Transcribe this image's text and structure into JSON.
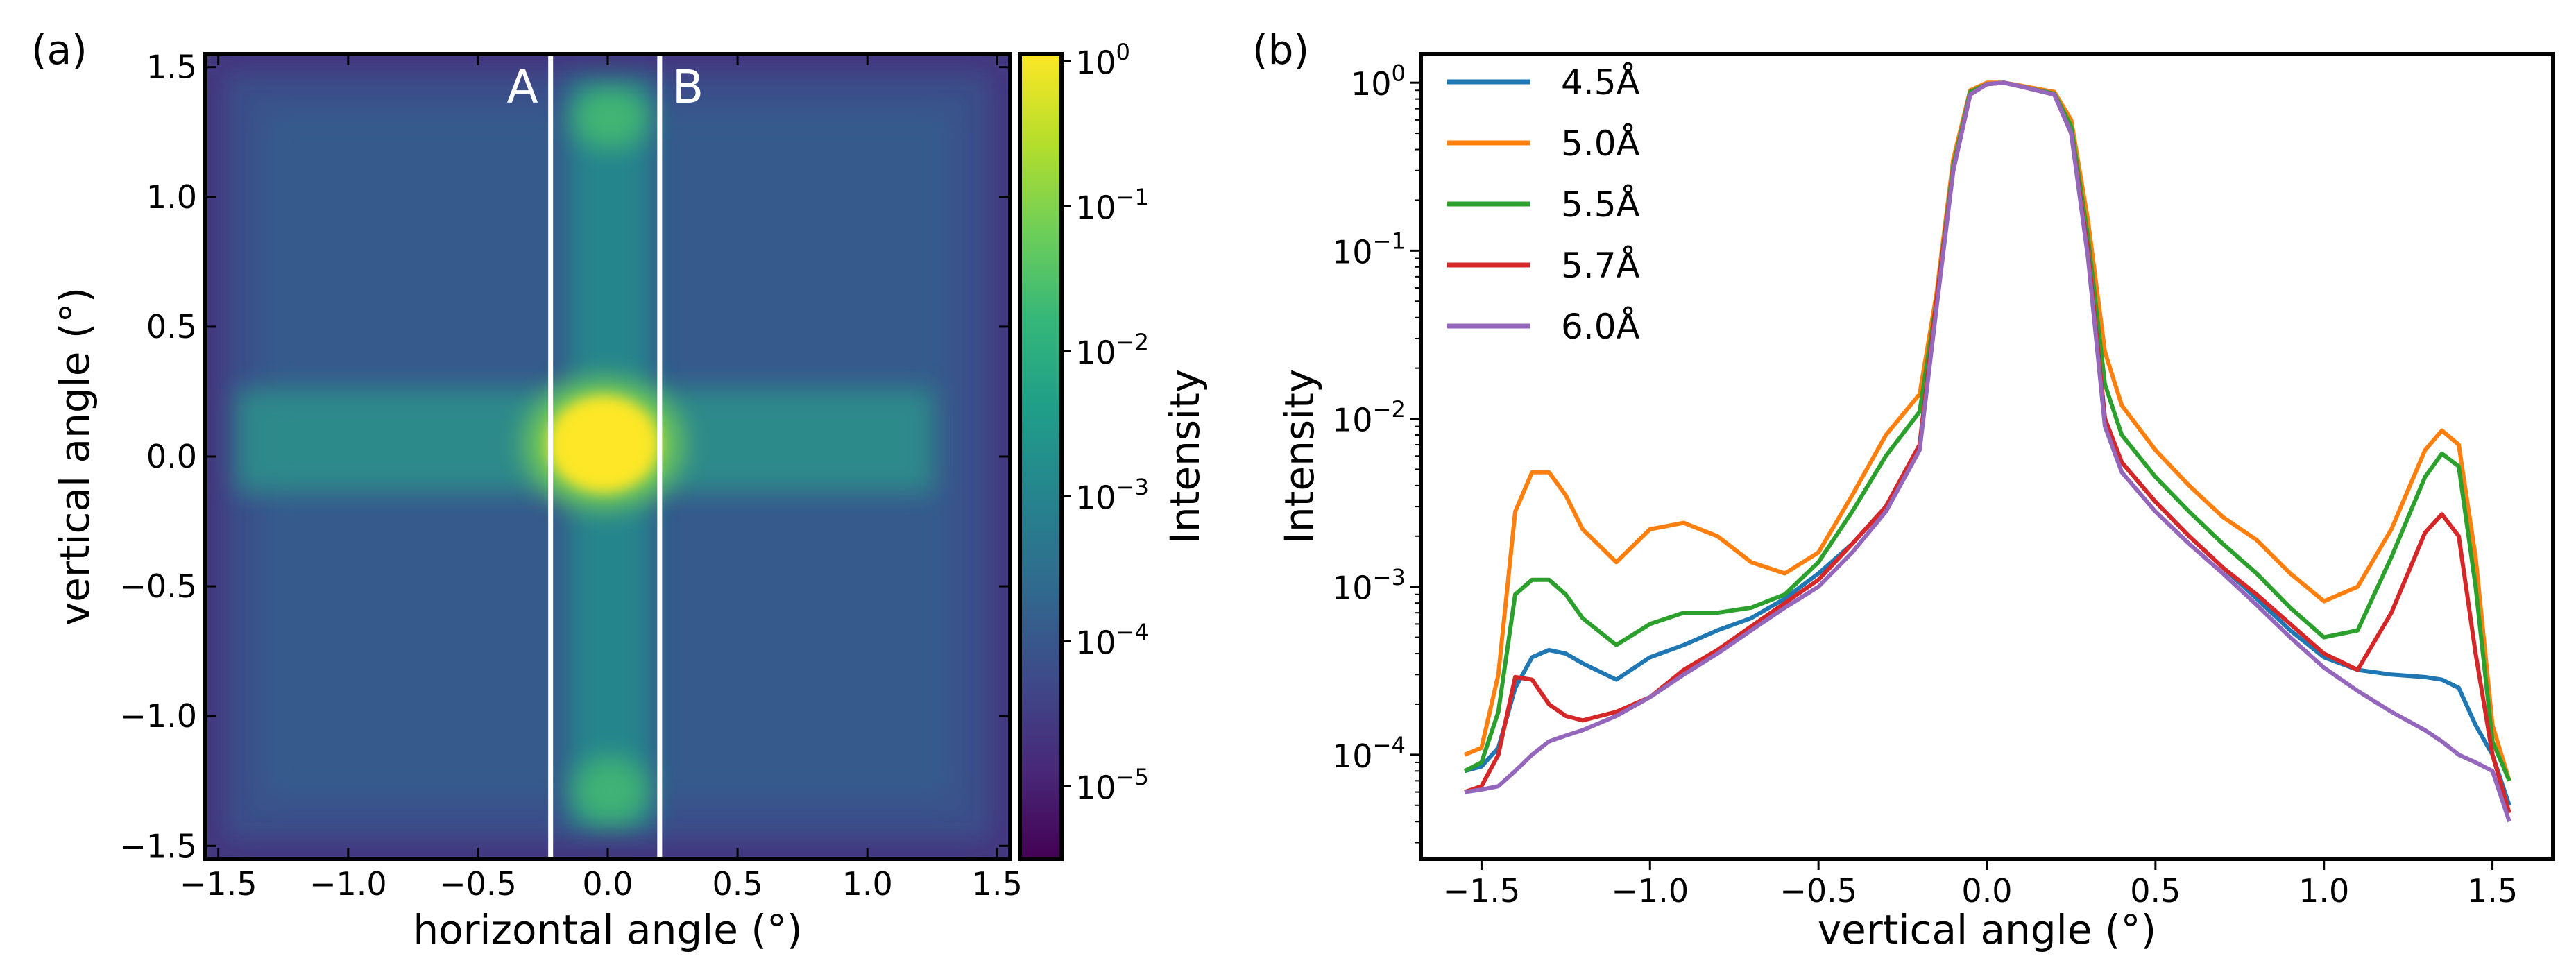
{
  "chart_data": [
    {
      "panel_label": "(a)",
      "type": "heatmap",
      "xlabel": "horizontal angle (°)",
      "ylabel": "vertical angle (°)",
      "xlim": [
        -1.55,
        1.55
      ],
      "ylim": [
        -1.55,
        1.55
      ],
      "x_ticks": [
        -1.5,
        -1.0,
        -0.5,
        0.0,
        0.5,
        1.0,
        1.5
      ],
      "x_tick_labels": [
        "−1.5",
        "−1.0",
        "−0.5",
        "0.0",
        "0.5",
        "1.0",
        "1.5"
      ],
      "y_ticks": [
        -1.5,
        -1.0,
        -0.5,
        0.0,
        0.5,
        1.0,
        1.5
      ],
      "y_tick_labels": [
        "−1.5",
        "−1.0",
        "−0.5",
        "0.0",
        "0.5",
        "1.0",
        "1.5"
      ],
      "colorbar": {
        "label": "Intensity",
        "scale": "log",
        "range_exponent": [
          -5.5,
          0.05
        ],
        "ticks": [
          {
            "exp": 0,
            "text": "10",
            "sup": "0"
          },
          {
            "exp": -1,
            "text": "10",
            "sup": "−1"
          },
          {
            "exp": -2,
            "text": "10",
            "sup": "−2"
          },
          {
            "exp": -3,
            "text": "10",
            "sup": "−3"
          },
          {
            "exp": -4,
            "text": "10",
            "sup": "−4"
          },
          {
            "exp": -5,
            "text": "10",
            "sup": "−5"
          }
        ]
      },
      "cut_lines": [
        {
          "label": "A",
          "x": -0.22
        },
        {
          "label": "B",
          "x": 0.2
        }
      ]
    },
    {
      "panel_label": "(b)",
      "type": "line",
      "xlabel": "vertical angle (°)",
      "ylabel": "Intensity",
      "yscale": "log",
      "xlim": [
        -1.68,
        1.68
      ],
      "ylim_exponent": [
        -4.62,
        0.17
      ],
      "x_ticks": [
        -1.5,
        -1.0,
        -0.5,
        0.0,
        0.5,
        1.0,
        1.5
      ],
      "x_tick_labels": [
        "−1.5",
        "−1.0",
        "−0.5",
        "0.0",
        "0.5",
        "1.0",
        "1.5"
      ],
      "y_ticks": [
        {
          "exp": 0,
          "text": "10",
          "sup": "0"
        },
        {
          "exp": -1,
          "text": "10",
          "sup": "−1"
        },
        {
          "exp": -2,
          "text": "10",
          "sup": "−2"
        },
        {
          "exp": -3,
          "text": "10",
          "sup": "−3"
        },
        {
          "exp": -4,
          "text": "10",
          "sup": "−4"
        }
      ],
      "legend_position": "upper-left",
      "series": [
        {
          "name": "4.5Å",
          "color": "#1f77b4",
          "x": [
            -1.55,
            -1.5,
            -1.45,
            -1.4,
            -1.35,
            -1.3,
            -1.25,
            -1.2,
            -1.1,
            -1.0,
            -0.9,
            -0.8,
            -0.7,
            -0.6,
            -0.5,
            -0.4,
            -0.3,
            -0.2,
            -0.15,
            -0.1,
            -0.05,
            0.0,
            0.05,
            0.1,
            0.2,
            0.25,
            0.3,
            0.35,
            0.4,
            0.5,
            0.6,
            0.7,
            0.8,
            0.9,
            1.0,
            1.1,
            1.2,
            1.3,
            1.35,
            1.4,
            1.45,
            1.5,
            1.55
          ],
          "y": [
            8e-05,
            8.5e-05,
            0.00011,
            0.00025,
            0.00038,
            0.00042,
            0.0004,
            0.00035,
            0.00028,
            0.00038,
            0.00045,
            0.00055,
            0.00065,
            0.00085,
            0.0012,
            0.0018,
            0.003,
            0.007,
            0.05,
            0.3,
            0.85,
            0.98,
            1.0,
            0.95,
            0.85,
            0.5,
            0.1,
            0.01,
            0.0055,
            0.0032,
            0.002,
            0.0013,
            0.00085,
            0.00055,
            0.00038,
            0.00032,
            0.0003,
            0.00029,
            0.00028,
            0.00025,
            0.00015,
            0.0001,
            5e-05
          ]
        },
        {
          "name": "5.0Å",
          "color": "#ff7f0e",
          "x": [
            -1.55,
            -1.5,
            -1.45,
            -1.4,
            -1.35,
            -1.3,
            -1.25,
            -1.2,
            -1.1,
            -1.0,
            -0.9,
            -0.8,
            -0.7,
            -0.6,
            -0.5,
            -0.4,
            -0.3,
            -0.2,
            -0.15,
            -0.1,
            -0.05,
            0.0,
            0.05,
            0.1,
            0.2,
            0.25,
            0.3,
            0.35,
            0.4,
            0.5,
            0.6,
            0.7,
            0.8,
            0.9,
            1.0,
            1.1,
            1.2,
            1.3,
            1.35,
            1.4,
            1.45,
            1.5,
            1.55
          ],
          "y": [
            0.0001,
            0.00011,
            0.0003,
            0.0028,
            0.0048,
            0.0048,
            0.0035,
            0.0022,
            0.0014,
            0.0022,
            0.0024,
            0.002,
            0.0014,
            0.0012,
            0.0016,
            0.0035,
            0.008,
            0.014,
            0.055,
            0.35,
            0.9,
            1.0,
            1.0,
            0.96,
            0.88,
            0.6,
            0.15,
            0.025,
            0.012,
            0.0065,
            0.004,
            0.0026,
            0.0019,
            0.0012,
            0.00082,
            0.001,
            0.0022,
            0.0065,
            0.0085,
            0.007,
            0.0015,
            0.00015,
            7e-05
          ]
        },
        {
          "name": "5.5Å",
          "color": "#2ca02c",
          "x": [
            -1.55,
            -1.5,
            -1.45,
            -1.4,
            -1.35,
            -1.3,
            -1.25,
            -1.2,
            -1.1,
            -1.0,
            -0.9,
            -0.8,
            -0.7,
            -0.6,
            -0.5,
            -0.4,
            -0.3,
            -0.2,
            -0.15,
            -0.1,
            -0.05,
            0.0,
            0.05,
            0.1,
            0.2,
            0.25,
            0.3,
            0.35,
            0.4,
            0.5,
            0.6,
            0.7,
            0.8,
            0.9,
            1.0,
            1.1,
            1.2,
            1.3,
            1.35,
            1.4,
            1.45,
            1.5,
            1.55
          ],
          "y": [
            8e-05,
            9e-05,
            0.00018,
            0.0009,
            0.0011,
            0.0011,
            0.0009,
            0.00065,
            0.00045,
            0.0006,
            0.0007,
            0.0007,
            0.00075,
            0.0009,
            0.0014,
            0.0028,
            0.006,
            0.011,
            0.05,
            0.32,
            0.88,
            0.98,
            1.0,
            0.95,
            0.86,
            0.55,
            0.12,
            0.016,
            0.008,
            0.0045,
            0.0028,
            0.0018,
            0.0012,
            0.00075,
            0.0005,
            0.00055,
            0.0015,
            0.0045,
            0.0062,
            0.0052,
            0.001,
            0.00012,
            7e-05
          ]
        },
        {
          "name": "5.7Å",
          "color": "#d62728",
          "x": [
            -1.55,
            -1.5,
            -1.45,
            -1.4,
            -1.35,
            -1.3,
            -1.25,
            -1.2,
            -1.1,
            -1.0,
            -0.9,
            -0.8,
            -0.7,
            -0.6,
            -0.5,
            -0.4,
            -0.3,
            -0.2,
            -0.15,
            -0.1,
            -0.05,
            0.0,
            0.05,
            0.1,
            0.2,
            0.25,
            0.3,
            0.35,
            0.4,
            0.5,
            0.6,
            0.7,
            0.8,
            0.9,
            1.0,
            1.1,
            1.2,
            1.3,
            1.35,
            1.4,
            1.45,
            1.5,
            1.55
          ],
          "y": [
            6e-05,
            6.5e-05,
            0.0001,
            0.00029,
            0.00028,
            0.0002,
            0.00017,
            0.00016,
            0.00018,
            0.00022,
            0.00032,
            0.00042,
            0.00058,
            0.0008,
            0.0011,
            0.0018,
            0.003,
            0.007,
            0.05,
            0.3,
            0.85,
            0.98,
            1.0,
            0.95,
            0.85,
            0.5,
            0.1,
            0.01,
            0.0055,
            0.0032,
            0.002,
            0.0013,
            0.0009,
            0.0006,
            0.0004,
            0.00032,
            0.0007,
            0.0021,
            0.0027,
            0.002,
            0.0004,
            0.0001,
            4.5e-05
          ]
        },
        {
          "name": "6.0Å",
          "color": "#9467bd",
          "x": [
            -1.55,
            -1.5,
            -1.45,
            -1.4,
            -1.35,
            -1.3,
            -1.25,
            -1.2,
            -1.1,
            -1.0,
            -0.9,
            -0.8,
            -0.7,
            -0.6,
            -0.5,
            -0.4,
            -0.3,
            -0.2,
            -0.15,
            -0.1,
            -0.05,
            0.0,
            0.05,
            0.1,
            0.2,
            0.25,
            0.3,
            0.35,
            0.4,
            0.5,
            0.6,
            0.7,
            0.8,
            0.9,
            1.0,
            1.1,
            1.2,
            1.3,
            1.35,
            1.4,
            1.45,
            1.5,
            1.55
          ],
          "y": [
            6e-05,
            6.2e-05,
            6.5e-05,
            8e-05,
            0.0001,
            0.00012,
            0.00013,
            0.00014,
            0.00017,
            0.00022,
            0.0003,
            0.0004,
            0.00055,
            0.00075,
            0.001,
            0.0016,
            0.0028,
            0.0065,
            0.045,
            0.3,
            0.85,
            0.98,
            1.0,
            0.95,
            0.85,
            0.5,
            0.09,
            0.009,
            0.0048,
            0.0028,
            0.0018,
            0.0012,
            0.00078,
            0.0005,
            0.00033,
            0.00024,
            0.00018,
            0.00014,
            0.00012,
            0.0001,
            9e-05,
            8e-05,
            4e-05
          ]
        }
      ]
    }
  ]
}
